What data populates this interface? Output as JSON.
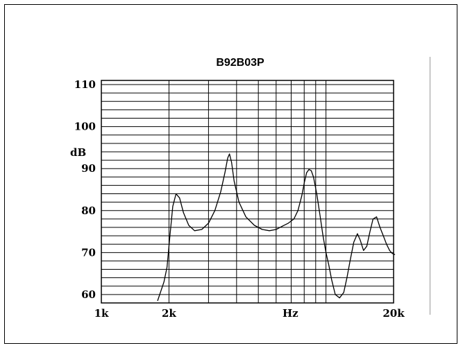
{
  "chart_data": {
    "type": "line",
    "title": "B92B03P",
    "xlabel": "Hz",
    "ylabel": "dB",
    "xscale": "log",
    "xlim": [
      1000,
      20000
    ],
    "ylim": [
      58,
      111
    ],
    "grid": true,
    "ytick_labels": [
      {
        "value": 110,
        "label": "110"
      },
      {
        "value": 100,
        "label": "100"
      },
      {
        "value": 90,
        "label": "90"
      },
      {
        "value": 80,
        "label": "80"
      },
      {
        "value": 70,
        "label": "70"
      },
      {
        "value": 60,
        "label": "60"
      }
    ],
    "xtick_labels": [
      {
        "value": 1000,
        "label": "1k"
      },
      {
        "value": 2000,
        "label": "2k"
      },
      {
        "value": 20000,
        "label": "20k"
      }
    ],
    "series": [
      {
        "color": "#000000",
        "x": [
          1780,
          1900,
          1960,
          2020,
          2080,
          2150,
          2230,
          2320,
          2450,
          2600,
          2800,
          3000,
          3200,
          3400,
          3550,
          3650,
          3720,
          3800,
          3900,
          4100,
          4400,
          4800,
          5200,
          5600,
          6000,
          6400,
          6800,
          7200,
          7500,
          7800,
          8000,
          8200,
          8400,
          8600,
          8800,
          9100,
          9400,
          9700,
          10000,
          10300,
          10600,
          11000,
          11500,
          12000,
          12400,
          12800,
          13300,
          13800,
          14200,
          14700,
          15200,
          15700,
          16200,
          16800,
          17400,
          18000,
          18600,
          19200,
          19700,
          20300
        ],
        "y": [
          58.5,
          63,
          66.5,
          74,
          81,
          84,
          83,
          79.5,
          76.5,
          75.2,
          75.5,
          77,
          80,
          84.5,
          89,
          92.5,
          93.5,
          91.5,
          87,
          82,
          78.5,
          76.5,
          75.5,
          75.2,
          75.5,
          76.3,
          77,
          78,
          80,
          83.5,
          86.5,
          89,
          89.8,
          89.5,
          88,
          84,
          79,
          74,
          70,
          67,
          63.5,
          60,
          59.2,
          60.5,
          64,
          68,
          72.5,
          74.5,
          73,
          70.5,
          71.5,
          75,
          78,
          78.5,
          76,
          74,
          72,
          70.5,
          69.8,
          69.5
        ]
      }
    ]
  }
}
